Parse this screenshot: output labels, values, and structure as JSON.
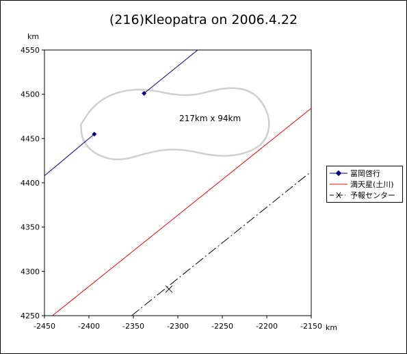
{
  "chart_data": {
    "type": "line",
    "title": "(216)Kleopatra on 2006.4.22",
    "xlabel": "km",
    "ylabel": "km",
    "xlim": [
      -2450,
      -2150
    ],
    "ylim": [
      4250,
      4550
    ],
    "x_ticks": [
      "-2450",
      "-2400",
      "-2350",
      "-2300",
      "-2250",
      "-2200",
      "-2150"
    ],
    "y_ticks": [
      "4250",
      "4300",
      "4350",
      "4400",
      "4450",
      "4500",
      "4550"
    ],
    "annotation": "217km x 94km",
    "grid": false,
    "legend_position": "right",
    "series": [
      {
        "name": "冨岡啓行",
        "color": "#000080",
        "segments": [
          [
            [
              -2450,
              4408
            ],
            [
              -2394,
              4455
            ]
          ],
          [
            [
              -2338,
              4501
            ],
            [
              -2274,
              4553
            ]
          ]
        ],
        "markers": [
          [
            -2394,
            4455
          ],
          [
            -2338,
            4501
          ]
        ]
      },
      {
        "name": "満天星(土川)",
        "color": "#ff0000",
        "segments": [
          [
            [
              -2441,
              4250
            ],
            [
              -2149,
              4485
            ]
          ]
        ],
        "markers": []
      },
      {
        "name": "予報センター",
        "color": "#000000",
        "style": "dash-dot",
        "segments": [
          [
            [
              -2352,
              4250
            ],
            [
              -2151,
              4412
            ]
          ]
        ],
        "markers": [
          [
            -2310,
            4280
          ]
        ]
      }
    ],
    "shape_outline": [
      [
        -2409,
        4466
      ],
      [
        -2396,
        4486
      ],
      [
        -2376,
        4500
      ],
      [
        -2350,
        4506
      ],
      [
        -2325,
        4504
      ],
      [
        -2302,
        4499
      ],
      [
        -2281,
        4499
      ],
      [
        -2262,
        4504
      ],
      [
        -2240,
        4508
      ],
      [
        -2218,
        4504
      ],
      [
        -2203,
        4489
      ],
      [
        -2196,
        4468
      ],
      [
        -2201,
        4448
      ],
      [
        -2216,
        4436
      ],
      [
        -2239,
        4430
      ],
      [
        -2264,
        4431
      ],
      [
        -2289,
        4437
      ],
      [
        -2313,
        4438
      ],
      [
        -2337,
        4433
      ],
      [
        -2360,
        4426
      ],
      [
        -2380,
        4427
      ],
      [
        -2398,
        4436
      ],
      [
        -2408,
        4450
      ],
      [
        -2409,
        4466
      ]
    ]
  }
}
